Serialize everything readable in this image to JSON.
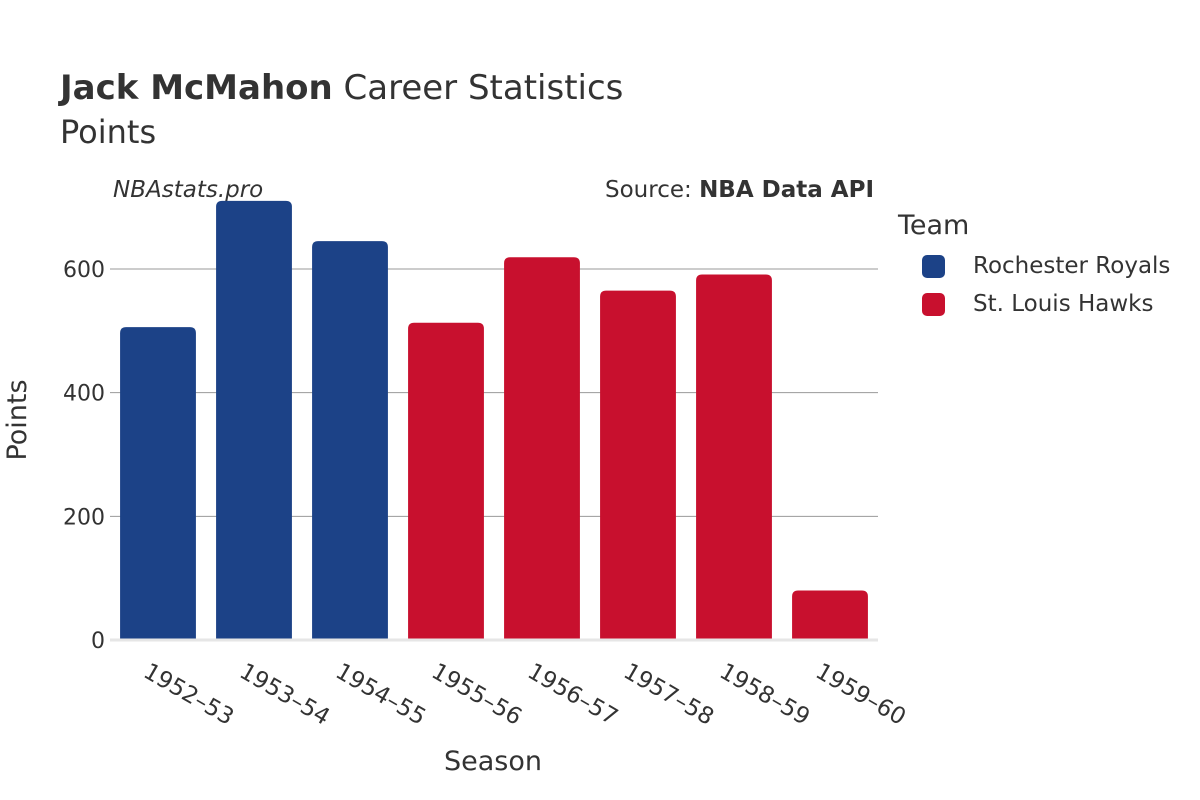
{
  "header": {
    "title_bold": "Jack McMahon",
    "title_rest": " Career Statistics",
    "subtitle": "Points",
    "watermark": "NBAstats.pro",
    "source_prefix": "Source: ",
    "source_name": "NBA Data API"
  },
  "legend": {
    "title": "Team",
    "items": [
      {
        "label": "Rochester Royals",
        "color": "#1c4287"
      },
      {
        "label": "St. Louis Hawks",
        "color": "#c8102e"
      }
    ]
  },
  "chart_data": {
    "type": "bar",
    "title": "Jack McMahon Career Statistics",
    "subtitle": "Points",
    "xlabel": "Season",
    "ylabel": "Points",
    "ylim": [
      0,
      760
    ],
    "yticks": [
      0,
      200,
      400,
      600
    ],
    "grid": true,
    "legend_position": "right",
    "categories": [
      "1952–53",
      "1953–54",
      "1954–55",
      "1955–56",
      "1956–57",
      "1957–58",
      "1958–59",
      "1959–60"
    ],
    "values": [
      506,
      710,
      645,
      513,
      619,
      565,
      591,
      80
    ],
    "teams": [
      "Rochester Royals",
      "Rochester Royals",
      "Rochester Royals",
      "St. Louis Hawks",
      "St. Louis Hawks",
      "St. Louis Hawks",
      "St. Louis Hawks",
      "St. Louis Hawks"
    ]
  }
}
